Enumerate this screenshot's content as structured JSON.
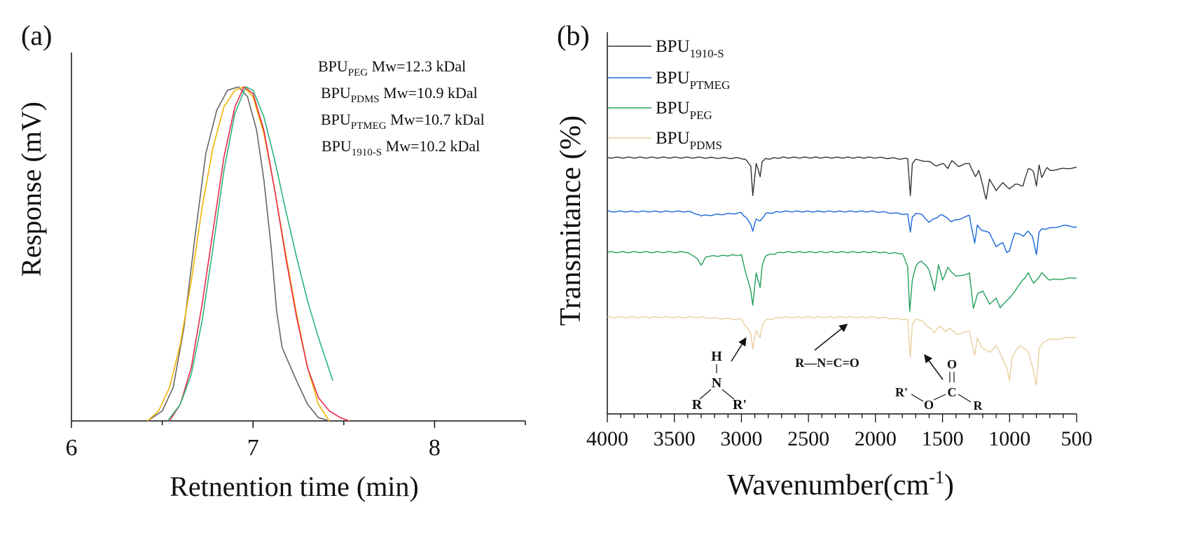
{
  "chart_data": [
    {
      "panel_label": "(a)",
      "type": "line",
      "xlabel": "Retnention time (min)",
      "ylabel": "Response (mV)",
      "xlim": [
        6,
        8.5
      ],
      "x_ticks": [
        6,
        7,
        8
      ],
      "y_ticks_shown": false,
      "grid": false,
      "legend_position": "top-right",
      "legend": [
        {
          "base": "BPU",
          "sub": "PEG",
          "text": "Mw=12.3 kDal"
        },
        {
          "base": "BPU",
          "sub": "PDMS",
          "text": "Mw=10.9 kDal"
        },
        {
          "base": "BPU",
          "sub": "PTMEG",
          "text": "Mw=10.7 kDal"
        },
        {
          "base": "BPU",
          "sub": "1910-S",
          "text": "Mw=10.2 kDal"
        }
      ],
      "series": [
        {
          "color": "#666666",
          "x": [
            6.42,
            6.5,
            6.56,
            6.62,
            6.68,
            6.74,
            6.8,
            6.86,
            6.92,
            6.97,
            7.02,
            7.06,
            7.1,
            7.13,
            7.16,
            7.2,
            7.24,
            7.3,
            7.36,
            7.42
          ],
          "y": [
            0.0,
            0.03,
            0.1,
            0.28,
            0.55,
            0.8,
            0.93,
            0.99,
            1.0,
            0.97,
            0.87,
            0.72,
            0.52,
            0.33,
            0.22,
            0.17,
            0.12,
            0.05,
            0.01,
            0.0
          ]
        },
        {
          "color": "#f0b400",
          "x": [
            6.42,
            6.48,
            6.54,
            6.6,
            6.66,
            6.72,
            6.78,
            6.84,
            6.9,
            6.95,
            7.0,
            7.06,
            7.12,
            7.18,
            7.24,
            7.3,
            7.36,
            7.42
          ],
          "y": [
            0.0,
            0.03,
            0.1,
            0.23,
            0.42,
            0.64,
            0.82,
            0.94,
            0.99,
            1.0,
            0.97,
            0.86,
            0.69,
            0.5,
            0.32,
            0.16,
            0.05,
            0.0
          ]
        },
        {
          "color": "#e8294a",
          "x": [
            6.54,
            6.6,
            6.66,
            6.72,
            6.78,
            6.84,
            6.9,
            6.95,
            7.0,
            7.06,
            7.12,
            7.18,
            7.24,
            7.3,
            7.36,
            7.42,
            7.48,
            7.53
          ],
          "y": [
            0.0,
            0.05,
            0.16,
            0.35,
            0.57,
            0.79,
            0.94,
            1.0,
            0.98,
            0.87,
            0.69,
            0.49,
            0.31,
            0.16,
            0.07,
            0.03,
            0.01,
            0.0
          ]
        },
        {
          "color": "#2bb37a",
          "x": [
            6.53,
            6.6,
            6.66,
            6.72,
            6.78,
            6.84,
            6.9,
            6.96,
            7.0,
            7.06,
            7.12,
            7.18,
            7.24,
            7.3,
            7.36,
            7.44
          ],
          "y": [
            0.0,
            0.05,
            0.14,
            0.3,
            0.52,
            0.75,
            0.92,
            1.0,
            0.99,
            0.91,
            0.78,
            0.63,
            0.49,
            0.36,
            0.25,
            0.12
          ]
        }
      ]
    },
    {
      "panel_label": "(b)",
      "type": "line",
      "xlabel": "Wavenumber(cm",
      "xlabel_sup": "-1",
      "xlabel_end": ")",
      "ylabel": "Transmitance (%)",
      "xlim": [
        4000,
        500
      ],
      "x_reversed": true,
      "x_ticks": [
        4000,
        3500,
        3000,
        2500,
        2000,
        1500,
        1000,
        500
      ],
      "y_ticks_shown": false,
      "grid": false,
      "legend_position": "top-left",
      "legend": [
        {
          "base": "BPU",
          "sub": "1910-S",
          "color": "#333333"
        },
        {
          "base": "BPU",
          "sub": "PTMEG",
          "color": "#1a66d9"
        },
        {
          "base": "BPU",
          "sub": "PEG",
          "color": "#23a05a"
        },
        {
          "base": "BPU",
          "sub": "PDMS",
          "color": "#e8cfa0"
        }
      ],
      "series": [
        {
          "name": "1910-S",
          "color": "#333333",
          "offset": 0,
          "x": [
            4000,
            3400,
            3320,
            3000,
            2960,
            2930,
            2915,
            2890,
            2860,
            2845,
            2820,
            2700,
            2000,
            1760,
            1740,
            1725,
            1700,
            1650,
            1600,
            1540,
            1500,
            1460,
            1430,
            1380,
            1300,
            1255,
            1230,
            1200,
            1175,
            1150,
            1100,
            1050,
            1000,
            960,
            900,
            860,
            820,
            800,
            780,
            760,
            720,
            700,
            600,
            500
          ],
          "y": [
            0,
            0,
            0,
            -1,
            -4,
            -12,
            -55,
            -8,
            -28,
            -5,
            -2,
            0,
            0,
            -2,
            -55,
            -8,
            -3,
            -4,
            -6,
            -12,
            -8,
            -15,
            -5,
            -12,
            -8,
            -28,
            -18,
            -40,
            -60,
            -30,
            -48,
            -35,
            -45,
            -38,
            -40,
            -15,
            -20,
            -40,
            -10,
            -28,
            -14,
            -18,
            -16,
            -14
          ]
        },
        {
          "name": "PTMEG",
          "color": "#1a66d9",
          "offset": 77,
          "x": [
            4000,
            3400,
            3320,
            3300,
            3000,
            2960,
            2930,
            2915,
            2890,
            2860,
            2820,
            2700,
            2000,
            1760,
            1740,
            1725,
            1700,
            1650,
            1600,
            1540,
            1500,
            1440,
            1400,
            1300,
            1260,
            1240,
            1200,
            1150,
            1100,
            1050,
            1020,
            1000,
            960,
            900,
            860,
            830,
            800,
            780,
            760,
            700,
            600,
            500
          ],
          "y": [
            0,
            0,
            -4,
            -6,
            -2,
            -10,
            -18,
            -28,
            -10,
            -14,
            -3,
            0,
            0,
            -4,
            -30,
            -8,
            -3,
            -5,
            -15,
            -8,
            -4,
            -14,
            -12,
            -6,
            -46,
            -20,
            -28,
            -30,
            -50,
            -45,
            -58,
            -55,
            -30,
            -35,
            -28,
            -35,
            -62,
            -30,
            -25,
            -24,
            -20,
            -22
          ]
        },
        {
          "name": "PEG",
          "color": "#23a05a",
          "offset": 135,
          "x": [
            4000,
            3400,
            3330,
            3300,
            3260,
            3000,
            2960,
            2930,
            2915,
            2890,
            2860,
            2845,
            2820,
            2700,
            2000,
            1800,
            1760,
            1745,
            1725,
            1700,
            1660,
            1600,
            1560,
            1530,
            1500,
            1460,
            1400,
            1300,
            1270,
            1240,
            1200,
            1150,
            1100,
            1070,
            1000,
            900,
            860,
            820,
            760,
            700,
            600,
            500
          ],
          "y": [
            0,
            0,
            -10,
            -18,
            -6,
            -4,
            -35,
            -55,
            -75,
            -30,
            -50,
            -20,
            -5,
            0,
            0,
            -2,
            -20,
            -85,
            -40,
            -20,
            -12,
            -25,
            -55,
            -18,
            -40,
            -22,
            -35,
            -30,
            -80,
            -60,
            -55,
            -75,
            -65,
            -80,
            -65,
            -40,
            -30,
            -45,
            -30,
            -40,
            -38,
            -37
          ]
        },
        {
          "name": "PDMS",
          "color": "#e8cfa0",
          "offset": 228,
          "x": [
            4000,
            3400,
            3320,
            3000,
            2960,
            2930,
            2915,
            2890,
            2860,
            2845,
            2820,
            2700,
            2000,
            1760,
            1740,
            1725,
            1700,
            1650,
            1600,
            1560,
            1520,
            1480,
            1440,
            1400,
            1300,
            1260,
            1240,
            1200,
            1150,
            1100,
            1050,
            1020,
            1000,
            980,
            920,
            860,
            830,
            800,
            780,
            750,
            700,
            600,
            500
          ],
          "y": [
            0,
            0,
            0,
            -3,
            -15,
            -22,
            -45,
            -18,
            -30,
            -12,
            -4,
            0,
            0,
            -3,
            -58,
            -10,
            -3,
            -6,
            -14,
            -22,
            -12,
            -20,
            -16,
            -24,
            -20,
            -55,
            -30,
            -45,
            -50,
            -40,
            -60,
            -72,
            -90,
            -55,
            -40,
            -50,
            -70,
            -98,
            -45,
            -35,
            -32,
            -30,
            -28
          ]
        }
      ],
      "annotations": [
        {
          "id": "nh",
          "top": "H",
          "mid": "N",
          "left": "R",
          "right": "R'"
        },
        {
          "id": "nco",
          "text": "R—N=C=O"
        },
        {
          "id": "ester",
          "left": "R'",
          "o1": "O",
          "c": "C",
          "o2": "O",
          "right": "R"
        }
      ]
    }
  ]
}
